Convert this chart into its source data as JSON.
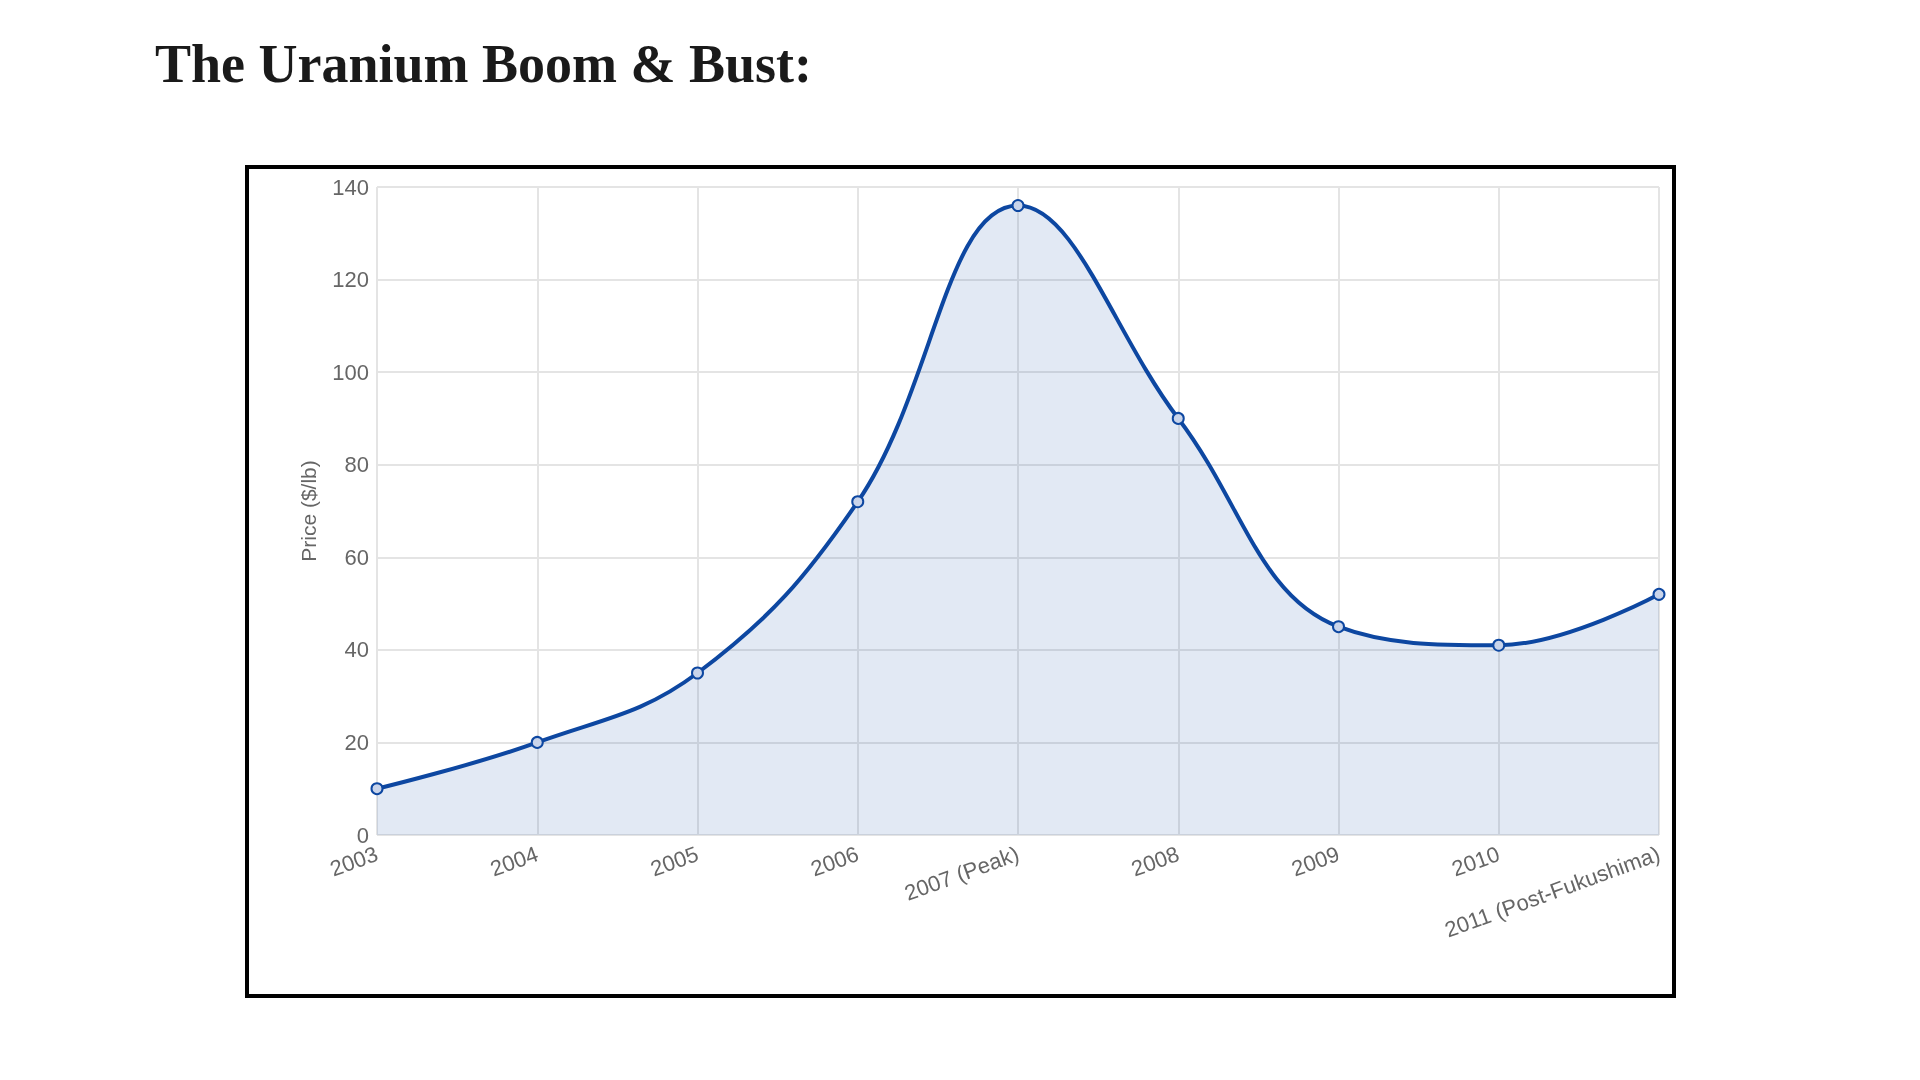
{
  "chart_data": {
    "type": "area",
    "title": "The Uranium Boom & Bust:",
    "ylabel": "Price ($/lb)",
    "categories": [
      "2003",
      "2004",
      "2005",
      "2006",
      "2007 (Peak)",
      "2008",
      "2009",
      "2010",
      "2011 (Post-Fukushima)"
    ],
    "series": [
      {
        "color": "#0d47a1",
        "values": [
          10,
          20,
          35,
          72,
          136,
          90,
          45,
          41,
          52
        ]
      }
    ],
    "ylim": [
      0,
      140
    ],
    "yticks": [
      0,
      20,
      40,
      60,
      80,
      100,
      120,
      140
    ],
    "grid": true,
    "marker": "circle",
    "line_style": "solid"
  }
}
